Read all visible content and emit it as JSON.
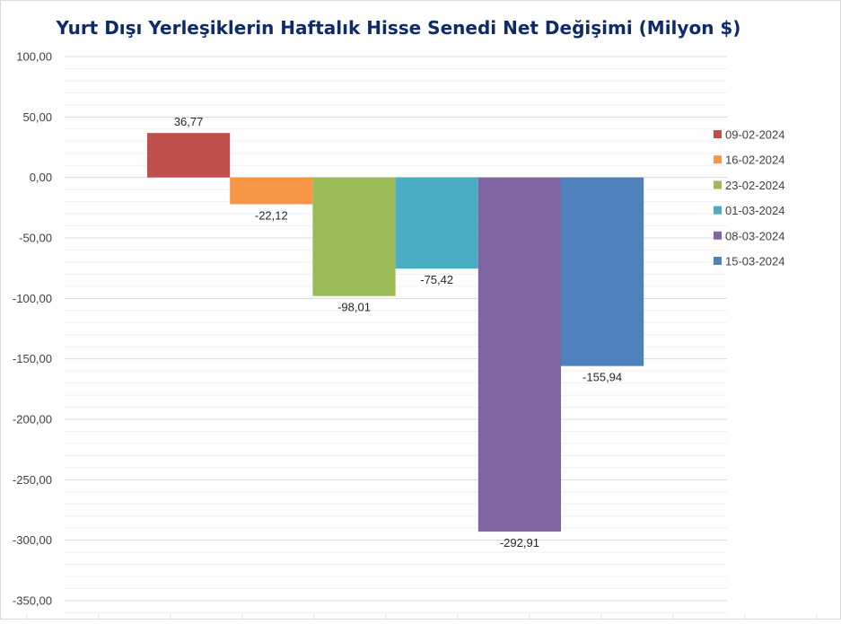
{
  "chart_data": {
    "type": "bar",
    "title": "Yurt Dışı Yerleşiklerin Haftalık Hisse Senedi Net Değişimi (Milyon $)",
    "xlabel": "",
    "ylabel": "",
    "ylim": [
      -350,
      100
    ],
    "major_step": 50,
    "y_tick_labels": [
      "100,00",
      "50,00",
      "0,00",
      "-50,00",
      "-100,00",
      "-150,00",
      "-200,00",
      "-250,00",
      "-300,00",
      "-350,00"
    ],
    "grid": true,
    "legend_position": "right",
    "series": [
      {
        "name": "09-02-2024",
        "value": 36.77,
        "label": "36,77",
        "color": "#c0504d"
      },
      {
        "name": "16-02-2024",
        "value": -22.12,
        "label": "-22,12",
        "color": "#f79646"
      },
      {
        "name": "23-02-2024",
        "value": -98.01,
        "label": "-98,01",
        "color": "#9bbb59"
      },
      {
        "name": "01-03-2024",
        "value": -75.42,
        "label": "-75,42",
        "color": "#4bacc6"
      },
      {
        "name": "08-03-2024",
        "value": -292.91,
        "label": "-292,91",
        "color": "#8064a2"
      },
      {
        "name": "15-03-2024",
        "value": -155.94,
        "label": "-155,94",
        "color": "#4f81bd"
      }
    ]
  }
}
